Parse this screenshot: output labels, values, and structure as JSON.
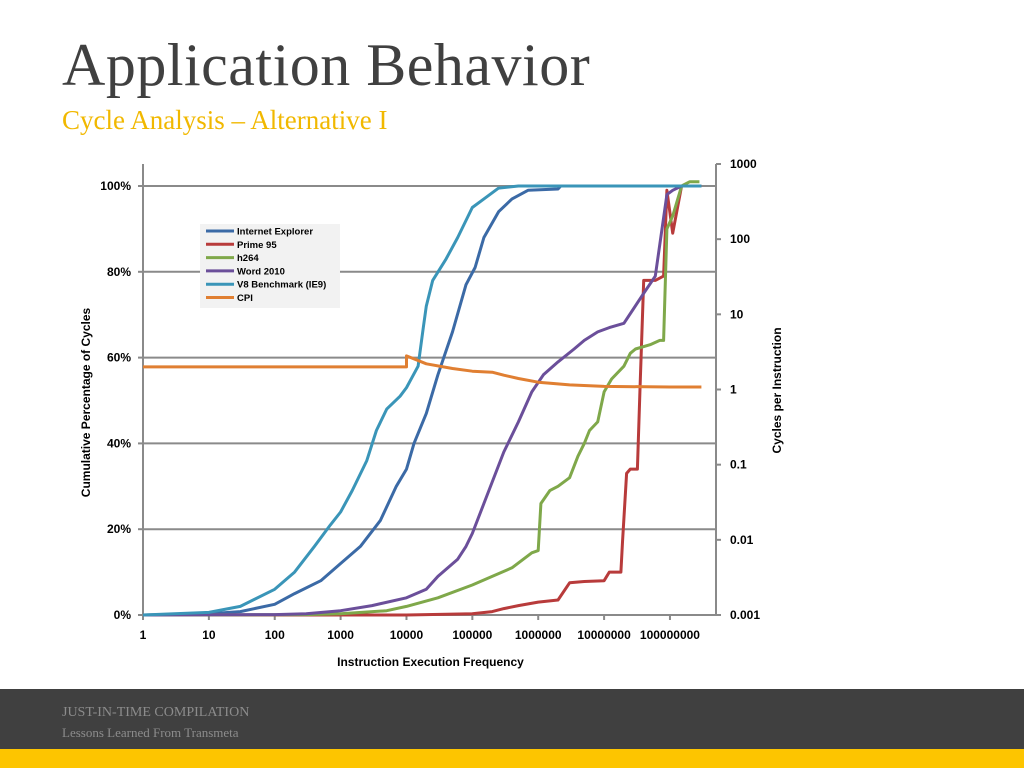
{
  "slide": {
    "title": "Application Behavior",
    "subtitle": "Cycle Analysis – Alternative I"
  },
  "footer": {
    "title": "JUST-IN-TIME COMPILATION",
    "subtitle": "Lessons Learned From Transmeta"
  },
  "colors": {
    "title": "#404040",
    "subtitle": "#f1b800",
    "footer_bg": "#404040",
    "footer_band": "#fdc500",
    "footer_text": "#8c8c8c"
  },
  "chart_data": {
    "type": "line",
    "title": "",
    "xlabel": "Instruction Execution Frequency",
    "ylabel": "Cumulative Percentage of Cycles",
    "y2label": "Cycles per Instruction",
    "xscale": "log",
    "xlim": [
      1,
      500000000
    ],
    "ylim": [
      0,
      100
    ],
    "y2lim": [
      0.001,
      1000
    ],
    "x_ticks": [
      1,
      10,
      100,
      1000,
      10000,
      100000,
      1000000,
      10000000,
      100000000
    ],
    "x_tick_labels": [
      "1",
      "10",
      "100",
      "1000",
      "10000",
      "100000",
      "1000000",
      "10000000",
      "100000000"
    ],
    "y_ticks": [
      0,
      20,
      40,
      60,
      80,
      100
    ],
    "y_tick_labels": [
      "0%",
      "20%",
      "40%",
      "60%",
      "80%",
      "100%"
    ],
    "y2_ticks": [
      0.001,
      0.01,
      0.1,
      1,
      10,
      100,
      1000
    ],
    "y2_tick_labels": [
      "0.001",
      "0.01",
      "0.1",
      "1",
      "10",
      "100",
      "1000"
    ],
    "grid": "horizontal",
    "legend_position": "upper-left",
    "series": [
      {
        "name": "Internet Explorer",
        "color": "#3b6aa6",
        "axis": "left",
        "points": [
          [
            1,
            0
          ],
          [
            10,
            0.3
          ],
          [
            30,
            0.8
          ],
          [
            100,
            2.5
          ],
          [
            200,
            5
          ],
          [
            500,
            8
          ],
          [
            1000,
            12
          ],
          [
            2000,
            16
          ],
          [
            4000,
            22
          ],
          [
            7000,
            30
          ],
          [
            10000,
            34
          ],
          [
            13000,
            40
          ],
          [
            20000,
            47
          ],
          [
            30000,
            56
          ],
          [
            50000,
            66
          ],
          [
            80000,
            77
          ],
          [
            110000,
            81
          ],
          [
            150000,
            88
          ],
          [
            250000,
            94
          ],
          [
            400000,
            97
          ],
          [
            700000,
            99
          ],
          [
            2000000,
            99.3
          ],
          [
            2200000,
            100
          ],
          [
            300000000,
            100
          ]
        ]
      },
      {
        "name": "Prime 95",
        "color": "#b83b3b",
        "axis": "left",
        "points": [
          [
            1,
            0
          ],
          [
            10000,
            0
          ],
          [
            100000,
            0.3
          ],
          [
            200000,
            0.8
          ],
          [
            300000,
            1.5
          ],
          [
            500000,
            2.2
          ],
          [
            1000000,
            3
          ],
          [
            2000000,
            3.5
          ],
          [
            3000000,
            7.5
          ],
          [
            5000000,
            7.8
          ],
          [
            10000000,
            8
          ],
          [
            12000000,
            10
          ],
          [
            18000000,
            10
          ],
          [
            19000000,
            17
          ],
          [
            22000000,
            33
          ],
          [
            25000000,
            34
          ],
          [
            32000000,
            34
          ],
          [
            35000000,
            52
          ],
          [
            40000000,
            78
          ],
          [
            60000000,
            78
          ],
          [
            80000000,
            79
          ],
          [
            90000000,
            99
          ],
          [
            110000000,
            89
          ],
          [
            150000000,
            100
          ],
          [
            300000000,
            100
          ]
        ]
      },
      {
        "name": "h264",
        "color": "#7fa84a",
        "axis": "left",
        "points": [
          [
            1,
            0
          ],
          [
            300,
            0.1
          ],
          [
            1000,
            0.3
          ],
          [
            5000,
            1
          ],
          [
            10000,
            2
          ],
          [
            30000,
            4
          ],
          [
            100000,
            7
          ],
          [
            200000,
            9
          ],
          [
            400000,
            11
          ],
          [
            800000,
            14.5
          ],
          [
            1000000,
            15
          ],
          [
            1100000,
            26
          ],
          [
            1500000,
            29
          ],
          [
            2000000,
            30
          ],
          [
            3000000,
            32
          ],
          [
            4000000,
            37
          ],
          [
            5000000,
            40
          ],
          [
            6000000,
            43
          ],
          [
            8000000,
            45
          ],
          [
            10000000,
            52
          ],
          [
            13000000,
            55
          ],
          [
            20000000,
            58
          ],
          [
            25000000,
            61
          ],
          [
            30000000,
            62
          ],
          [
            50000000,
            63
          ],
          [
            70000000,
            64
          ],
          [
            80000000,
            64
          ],
          [
            90000000,
            90
          ],
          [
            110000000,
            93
          ],
          [
            150000000,
            100
          ],
          [
            200000000,
            101
          ],
          [
            280000000,
            101
          ]
        ]
      },
      {
        "name": "Word 2010",
        "color": "#6b4f9a",
        "axis": "left",
        "points": [
          [
            1,
            0
          ],
          [
            100,
            0.1
          ],
          [
            300,
            0.3
          ],
          [
            1000,
            1
          ],
          [
            3000,
            2.2
          ],
          [
            10000,
            4
          ],
          [
            20000,
            6
          ],
          [
            30000,
            9
          ],
          [
            60000,
            13
          ],
          [
            80000,
            16
          ],
          [
            100000,
            19
          ],
          [
            150000,
            26
          ],
          [
            200000,
            31
          ],
          [
            300000,
            38
          ],
          [
            500000,
            45
          ],
          [
            800000,
            52
          ],
          [
            1200000,
            56
          ],
          [
            2000000,
            59
          ],
          [
            3500000,
            62
          ],
          [
            5000000,
            64
          ],
          [
            8000000,
            66
          ],
          [
            12000000,
            67
          ],
          [
            20000000,
            68
          ],
          [
            40000000,
            75
          ],
          [
            60000000,
            79
          ],
          [
            90000000,
            98
          ],
          [
            110000000,
            99
          ],
          [
            150000000,
            100
          ],
          [
            300000000,
            100
          ]
        ]
      },
      {
        "name": "V8 Benchmark (IE9)",
        "color": "#3a95b8",
        "axis": "left",
        "points": [
          [
            1,
            0
          ],
          [
            10,
            0.6
          ],
          [
            30,
            2
          ],
          [
            100,
            6
          ],
          [
            200,
            10
          ],
          [
            400,
            16
          ],
          [
            700,
            21
          ],
          [
            1000,
            24
          ],
          [
            1500,
            29
          ],
          [
            2500,
            36
          ],
          [
            3500,
            43
          ],
          [
            5000,
            48
          ],
          [
            8000,
            51
          ],
          [
            10000,
            53
          ],
          [
            15000,
            58
          ],
          [
            18000,
            67
          ],
          [
            20000,
            72
          ],
          [
            25000,
            78
          ],
          [
            40000,
            83
          ],
          [
            60000,
            88
          ],
          [
            100000,
            95
          ],
          [
            150000,
            97
          ],
          [
            250000,
            99.5
          ],
          [
            500000,
            100
          ],
          [
            300000000,
            100
          ]
        ]
      },
      {
        "name": "CPI",
        "color": "#e07f32",
        "axis": "right",
        "points": [
          [
            1,
            2
          ],
          [
            10000,
            2
          ],
          [
            10001,
            2.8
          ],
          [
            20000,
            2.2
          ],
          [
            50000,
            1.9
          ],
          [
            100000,
            1.75
          ],
          [
            200000,
            1.7
          ],
          [
            300000,
            1.55
          ],
          [
            500000,
            1.4
          ],
          [
            1000000,
            1.25
          ],
          [
            3000000,
            1.15
          ],
          [
            10000000,
            1.1
          ],
          [
            100000000,
            1.08
          ],
          [
            300000000,
            1.08
          ]
        ]
      }
    ]
  }
}
